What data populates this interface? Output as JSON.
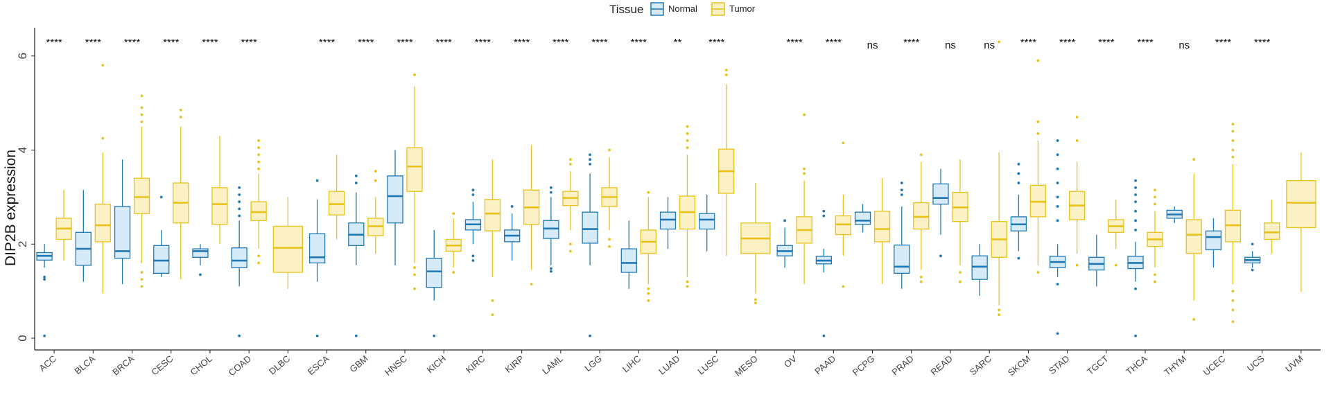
{
  "chart_data": {
    "type": "boxplot",
    "ylabel": "DIP2B expression",
    "xlabel": "",
    "ylim": [
      -0.25,
      6.6
    ],
    "yticks": [
      0,
      2,
      4,
      6
    ],
    "grid": false,
    "legend": {
      "title": "Tissue",
      "placement": "top-center",
      "entries": [
        {
          "name": "Normal",
          "color": "#1F78B4",
          "fill": "#D6EAF8"
        },
        {
          "name": "Tumor",
          "color": "#E8C21A",
          "fill": "#FBF1C4"
        }
      ]
    },
    "categories": [
      {
        "name": "ACC",
        "sig": "****",
        "normal": {
          "q1": 1.66,
          "med": 1.75,
          "q3": 1.82,
          "lo": 1.5,
          "hi": 2.0,
          "out": [
            1.3,
            1.25,
            0.05
          ]
        },
        "tumor": {
          "q1": 2.1,
          "med": 2.33,
          "q3": 2.55,
          "lo": 1.65,
          "hi": 3.15,
          "out": []
        }
      },
      {
        "name": "BLCA",
        "sig": "****",
        "normal": {
          "q1": 1.55,
          "med": 1.9,
          "q3": 2.25,
          "lo": 1.2,
          "hi": 3.15,
          "out": []
        },
        "tumor": {
          "q1": 2.05,
          "med": 2.4,
          "q3": 2.85,
          "lo": 0.95,
          "hi": 3.95,
          "out": [
            4.25,
            5.8
          ]
        }
      },
      {
        "name": "BRCA",
        "sig": "****",
        "normal": {
          "q1": 1.7,
          "med": 1.85,
          "q3": 2.8,
          "lo": 1.15,
          "hi": 3.8,
          "out": []
        },
        "tumor": {
          "q1": 2.65,
          "med": 3.0,
          "q3": 3.4,
          "lo": 1.6,
          "hi": 4.5,
          "out": [
            4.6,
            4.75,
            4.9,
            5.15,
            1.4,
            1.25,
            1.1
          ]
        }
      },
      {
        "name": "CESC",
        "sig": "****",
        "normal": {
          "q1": 1.38,
          "med": 1.65,
          "q3": 1.97,
          "lo": 1.3,
          "hi": 2.3,
          "out": [
            3.0
          ]
        },
        "tumor": {
          "q1": 2.45,
          "med": 2.88,
          "q3": 3.3,
          "lo": 1.25,
          "hi": 4.5,
          "out": [
            4.7,
            4.85
          ]
        }
      },
      {
        "name": "CHOL",
        "sig": "****",
        "normal": {
          "q1": 1.72,
          "med": 1.85,
          "q3": 1.9,
          "lo": 1.55,
          "hi": 2.0,
          "out": [
            1.35
          ]
        },
        "tumor": {
          "q1": 2.42,
          "med": 2.85,
          "q3": 3.2,
          "lo": 2.0,
          "hi": 4.3,
          "out": []
        }
      },
      {
        "name": "COAD",
        "sig": "****",
        "normal": {
          "q1": 1.5,
          "med": 1.65,
          "q3": 1.92,
          "lo": 1.1,
          "hi": 2.5,
          "out": [
            2.6,
            2.75,
            2.9,
            3.05,
            3.2,
            0.05
          ]
        },
        "tumor": {
          "q1": 2.5,
          "med": 2.68,
          "q3": 2.9,
          "lo": 1.9,
          "hi": 3.5,
          "out": [
            3.6,
            3.75,
            3.9,
            4.05,
            4.2,
            1.75,
            1.6
          ]
        }
      },
      {
        "name": "DLBC",
        "sig": "",
        "normal": null,
        "tumor": {
          "q1": 1.4,
          "med": 1.92,
          "q3": 2.38,
          "lo": 1.05,
          "hi": 3.0,
          "out": []
        }
      },
      {
        "name": "ESCA",
        "sig": "****",
        "normal": {
          "q1": 1.6,
          "med": 1.72,
          "q3": 2.22,
          "lo": 1.2,
          "hi": 2.95,
          "out": [
            3.35,
            0.05
          ]
        },
        "tumor": {
          "q1": 2.62,
          "med": 2.85,
          "q3": 3.12,
          "lo": 2.1,
          "hi": 3.9,
          "out": []
        }
      },
      {
        "name": "GBM",
        "sig": "****",
        "normal": {
          "q1": 1.97,
          "med": 2.2,
          "q3": 2.45,
          "lo": 1.55,
          "hi": 3.1,
          "out": [
            3.3,
            3.45,
            0.05
          ]
        },
        "tumor": {
          "q1": 2.18,
          "med": 2.38,
          "q3": 2.55,
          "lo": 1.8,
          "hi": 3.0,
          "out": [
            3.35,
            3.55
          ]
        }
      },
      {
        "name": "HNSC",
        "sig": "****",
        "normal": {
          "q1": 2.45,
          "med": 3.02,
          "q3": 3.45,
          "lo": 1.55,
          "hi": 4.0,
          "out": []
        },
        "tumor": {
          "q1": 3.12,
          "med": 3.65,
          "q3": 4.05,
          "lo": 1.6,
          "hi": 5.35,
          "out": [
            5.6,
            1.5,
            1.35,
            1.05
          ]
        }
      },
      {
        "name": "KICH",
        "sig": "****",
        "normal": {
          "q1": 1.08,
          "med": 1.42,
          "q3": 1.7,
          "lo": 0.8,
          "hi": 2.3,
          "out": [
            0.05
          ]
        },
        "tumor": {
          "q1": 1.85,
          "med": 1.97,
          "q3": 2.1,
          "lo": 1.5,
          "hi": 2.55,
          "out": [
            2.65,
            1.4
          ]
        }
      },
      {
        "name": "KIRC",
        "sig": "****",
        "normal": {
          "q1": 2.3,
          "med": 2.42,
          "q3": 2.52,
          "lo": 2.0,
          "hi": 2.9,
          "out": [
            3.05,
            3.15,
            1.75,
            1.65
          ]
        },
        "tumor": {
          "q1": 2.28,
          "med": 2.65,
          "q3": 2.95,
          "lo": 1.3,
          "hi": 3.8,
          "out": [
            0.8,
            0.5
          ]
        }
      },
      {
        "name": "KIRP",
        "sig": "****",
        "normal": {
          "q1": 2.05,
          "med": 2.18,
          "q3": 2.3,
          "lo": 1.65,
          "hi": 2.65,
          "out": [
            2.8
          ]
        },
        "tumor": {
          "q1": 2.42,
          "med": 2.78,
          "q3": 3.15,
          "lo": 1.45,
          "hi": 4.1,
          "out": [
            1.15
          ]
        }
      },
      {
        "name": "LAML",
        "sig": "****",
        "normal": {
          "q1": 2.12,
          "med": 2.33,
          "q3": 2.5,
          "lo": 1.55,
          "hi": 3.0,
          "out": [
            3.1,
            3.2,
            1.48,
            1.42
          ]
        },
        "tumor": {
          "q1": 2.82,
          "med": 2.98,
          "q3": 3.12,
          "lo": 2.3,
          "hi": 3.55,
          "out": [
            3.7,
            3.8,
            2.0,
            1.85
          ]
        }
      },
      {
        "name": "LGG",
        "sig": "****",
        "normal": {
          "q1": 2.02,
          "med": 2.32,
          "q3": 2.68,
          "lo": 1.55,
          "hi": 3.5,
          "out": [
            3.7,
            3.8,
            3.9,
            0.05
          ]
        },
        "tumor": {
          "q1": 2.8,
          "med": 3.0,
          "q3": 3.2,
          "lo": 2.3,
          "hi": 3.85,
          "out": [
            4.0,
            2.1,
            1.95
          ]
        }
      },
      {
        "name": "LIHC",
        "sig": "****",
        "normal": {
          "q1": 1.4,
          "med": 1.6,
          "q3": 1.9,
          "lo": 1.05,
          "hi": 2.5,
          "out": []
        },
        "tumor": {
          "q1": 1.8,
          "med": 2.05,
          "q3": 2.3,
          "lo": 1.15,
          "hi": 3.0,
          "out": [
            3.1,
            1.05,
            0.95,
            0.8
          ]
        }
      },
      {
        "name": "LUAD",
        "sig": "**",
        "normal": {
          "q1": 2.32,
          "med": 2.52,
          "q3": 2.68,
          "lo": 1.9,
          "hi": 3.0,
          "out": []
        },
        "tumor": {
          "q1": 2.32,
          "med": 2.68,
          "q3": 3.02,
          "lo": 1.3,
          "hi": 3.9,
          "out": [
            4.05,
            4.2,
            4.35,
            4.5,
            1.2,
            1.1
          ]
        }
      },
      {
        "name": "LUSC",
        "sig": "****",
        "normal": {
          "q1": 2.32,
          "med": 2.52,
          "q3": 2.65,
          "lo": 1.85,
          "hi": 3.05,
          "out": []
        },
        "tumor": {
          "q1": 3.08,
          "med": 3.55,
          "q3": 4.02,
          "lo": 1.75,
          "hi": 5.4,
          "out": [
            5.6,
            5.7
          ]
        }
      },
      {
        "name": "MESO",
        "sig": "",
        "normal": null,
        "tumor": {
          "q1": 1.8,
          "med": 2.12,
          "q3": 2.45,
          "lo": 0.95,
          "hi": 3.3,
          "out": [
            0.82,
            0.75
          ]
        }
      },
      {
        "name": "OV",
        "sig": "****",
        "normal": {
          "q1": 1.75,
          "med": 1.85,
          "q3": 1.97,
          "lo": 1.5,
          "hi": 2.35,
          "out": [
            2.5
          ]
        },
        "tumor": {
          "q1": 2.02,
          "med": 2.3,
          "q3": 2.58,
          "lo": 1.15,
          "hi": 3.35,
          "out": [
            3.5,
            3.6,
            4.75
          ]
        }
      },
      {
        "name": "PAAD",
        "sig": "****",
        "normal": {
          "q1": 1.58,
          "med": 1.65,
          "q3": 1.74,
          "lo": 1.4,
          "hi": 1.9,
          "out": [
            2.6,
            2.7,
            0.05
          ]
        },
        "tumor": {
          "q1": 2.2,
          "med": 2.42,
          "q3": 2.6,
          "lo": 1.75,
          "hi": 3.05,
          "out": [
            4.15,
            1.1
          ]
        }
      },
      {
        "name": "PCPG",
        "sig": "ns",
        "normal": {
          "q1": 2.42,
          "med": 2.5,
          "q3": 2.68,
          "lo": 2.25,
          "hi": 2.85,
          "out": []
        },
        "tumor": {
          "q1": 2.05,
          "med": 2.32,
          "q3": 2.7,
          "lo": 1.15,
          "hi": 3.4,
          "out": []
        }
      },
      {
        "name": "PRAD",
        "sig": "****",
        "normal": {
          "q1": 1.38,
          "med": 1.52,
          "q3": 1.98,
          "lo": 1.05,
          "hi": 2.8,
          "out": [
            3.05,
            3.15,
            3.3
          ]
        },
        "tumor": {
          "q1": 2.32,
          "med": 2.58,
          "q3": 2.88,
          "lo": 1.45,
          "hi": 3.75,
          "out": [
            3.9,
            1.3,
            1.2
          ]
        }
      },
      {
        "name": "READ",
        "sig": "ns",
        "normal": {
          "q1": 2.85,
          "med": 2.98,
          "q3": 3.28,
          "lo": 2.2,
          "hi": 3.6,
          "out": [
            1.75
          ]
        },
        "tumor": {
          "q1": 2.48,
          "med": 2.78,
          "q3": 3.1,
          "lo": 1.55,
          "hi": 3.8,
          "out": [
            1.4,
            1.2
          ]
        }
      },
      {
        "name": "SARC",
        "sig": "ns",
        "normal": {
          "q1": 1.25,
          "med": 1.52,
          "q3": 1.75,
          "lo": 0.9,
          "hi": 2.0,
          "out": []
        },
        "tumor": {
          "q1": 1.72,
          "med": 2.1,
          "q3": 2.48,
          "lo": 0.7,
          "hi": 3.95,
          "out": [
            0.6,
            0.5,
            6.3
          ]
        }
      },
      {
        "name": "SKCM",
        "sig": "****",
        "normal": {
          "q1": 2.28,
          "med": 2.42,
          "q3": 2.58,
          "lo": 1.85,
          "hi": 3.05,
          "out": [
            3.3,
            3.5,
            3.7,
            1.7
          ]
        },
        "tumor": {
          "q1": 2.58,
          "med": 2.9,
          "q3": 3.25,
          "lo": 1.55,
          "hi": 4.2,
          "out": [
            4.35,
            4.6,
            5.9,
            1.4
          ]
        }
      },
      {
        "name": "STAD",
        "sig": "****",
        "normal": {
          "q1": 1.5,
          "med": 1.62,
          "q3": 1.74,
          "lo": 1.3,
          "hi": 2.0,
          "out": [
            2.5,
            2.8,
            3.0,
            3.3,
            3.6,
            3.9,
            4.2,
            1.15,
            0.1
          ]
        },
        "tumor": {
          "q1": 2.52,
          "med": 2.82,
          "q3": 3.12,
          "lo": 1.8,
          "hi": 3.75,
          "out": [
            4.2,
            4.7,
            1.55
          ]
        }
      },
      {
        "name": "TGCT",
        "sig": "****",
        "normal": {
          "q1": 1.45,
          "med": 1.58,
          "q3": 1.72,
          "lo": 1.1,
          "hi": 2.2,
          "out": []
        },
        "tumor": {
          "q1": 2.25,
          "med": 2.38,
          "q3": 2.52,
          "lo": 1.9,
          "hi": 2.95,
          "out": [
            1.55
          ]
        }
      },
      {
        "name": "THCA",
        "sig": "****",
        "normal": {
          "q1": 1.48,
          "med": 1.6,
          "q3": 1.74,
          "lo": 1.2,
          "hi": 2.05,
          "out": [
            2.3,
            2.5,
            2.7,
            2.9,
            3.05,
            3.2,
            3.35,
            1.05,
            0.05
          ]
        },
        "tumor": {
          "q1": 1.95,
          "med": 2.1,
          "q3": 2.25,
          "lo": 1.5,
          "hi": 2.7,
          "out": [
            2.85,
            3.0,
            3.15,
            1.35,
            1.2
          ]
        }
      },
      {
        "name": "THYM",
        "sig": "ns",
        "normal": {
          "q1": 2.55,
          "med": 2.63,
          "q3": 2.72,
          "lo": 2.45,
          "hi": 2.8,
          "out": []
        },
        "tumor": {
          "q1": 1.8,
          "med": 2.2,
          "q3": 2.52,
          "lo": 0.8,
          "hi": 3.5,
          "out": [
            0.4,
            3.8
          ]
        }
      },
      {
        "name": "UCEC",
        "sig": "****",
        "normal": {
          "q1": 1.88,
          "med": 2.15,
          "q3": 2.28,
          "lo": 1.5,
          "hi": 2.55,
          "out": []
        },
        "tumor": {
          "q1": 2.05,
          "med": 2.4,
          "q3": 2.72,
          "lo": 1.15,
          "hi": 3.7,
          "out": [
            3.85,
            4.0,
            4.2,
            4.4,
            4.55,
            1.0,
            0.8,
            0.6,
            0.35
          ]
        }
      },
      {
        "name": "UCS",
        "sig": "****",
        "normal": {
          "q1": 1.6,
          "med": 1.66,
          "q3": 1.72,
          "lo": 1.5,
          "hi": 1.85,
          "out": [
            1.45,
            2.0
          ]
        },
        "tumor": {
          "q1": 2.1,
          "med": 2.25,
          "q3": 2.45,
          "lo": 1.8,
          "hi": 2.95,
          "out": []
        }
      },
      {
        "name": "UVM",
        "sig": "",
        "normal": null,
        "tumor": {
          "q1": 2.35,
          "med": 2.88,
          "q3": 3.35,
          "lo": 0.98,
          "hi": 3.95,
          "out": []
        }
      }
    ]
  }
}
